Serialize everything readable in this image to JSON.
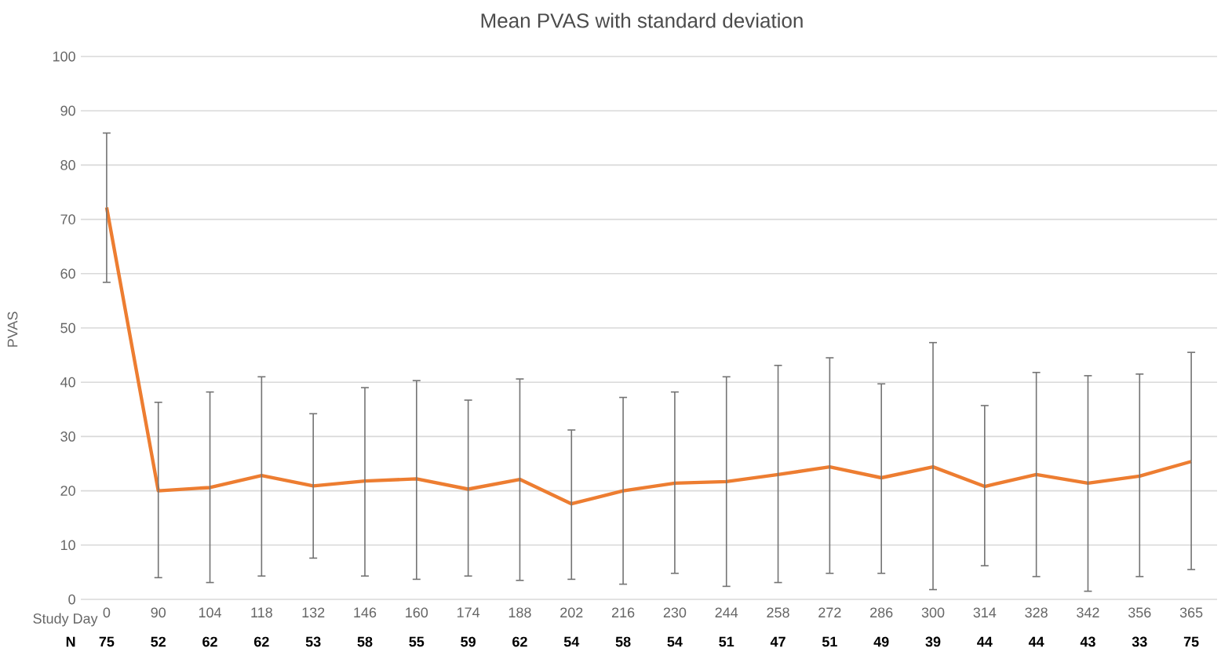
{
  "chart_data": {
    "type": "line",
    "title": "Mean PVAS with standard deviation",
    "xlabel": "Study Day",
    "ylabel": "PVAS",
    "categories": [
      "0",
      "90",
      "104",
      "118",
      "132",
      "146",
      "160",
      "174",
      "188",
      "202",
      "216",
      "230",
      "244",
      "258",
      "272",
      "286",
      "300",
      "314",
      "328",
      "342",
      "356",
      "365"
    ],
    "values": [
      72.2,
      20,
      20.6,
      22.8,
      20.9,
      21.8,
      22.2,
      20.3,
      22.1,
      17.6,
      20,
      21.4,
      21.7,
      23,
      24.4,
      22.4,
      24.4,
      20.8,
      23,
      21.4,
      22.7,
      25.4
    ],
    "errors": [
      [
        58.4,
        85.9
      ],
      [
        4.0,
        36.3
      ],
      [
        3.1,
        38.2
      ],
      [
        4.3,
        41
      ],
      [
        7.6,
        34.2
      ],
      [
        4.3,
        39
      ],
      [
        3.7,
        40.3
      ],
      [
        4.3,
        36.7
      ],
      [
        3.5,
        40.6
      ],
      [
        3.7,
        31.2
      ],
      [
        2.8,
        37.2
      ],
      [
        4.8,
        38.2
      ],
      [
        2.4,
        41
      ],
      [
        3.1,
        43.1
      ],
      [
        4.8,
        44.5
      ],
      [
        4.8,
        39.7
      ],
      [
        1.8,
        47.3
      ],
      [
        6.2,
        35.7
      ],
      [
        4.2,
        41.8
      ],
      [
        1.5,
        41.2
      ],
      [
        4.2,
        41.5
      ],
      [
        5.5,
        45.5
      ]
    ],
    "color": "#ed7d31",
    "ylim": [
      0,
      100
    ],
    "yticks": [
      0,
      10,
      20,
      30,
      40,
      50,
      60,
      70,
      80,
      90,
      100
    ],
    "grid": "y",
    "annotations": [
      "N",
      "75",
      "52",
      "62",
      "62",
      "53",
      "58",
      "55",
      "59",
      "62",
      "54",
      "58",
      "54",
      "51",
      "47",
      "51",
      "49",
      "39",
      "44",
      "44",
      "43",
      "33",
      "75"
    ]
  }
}
